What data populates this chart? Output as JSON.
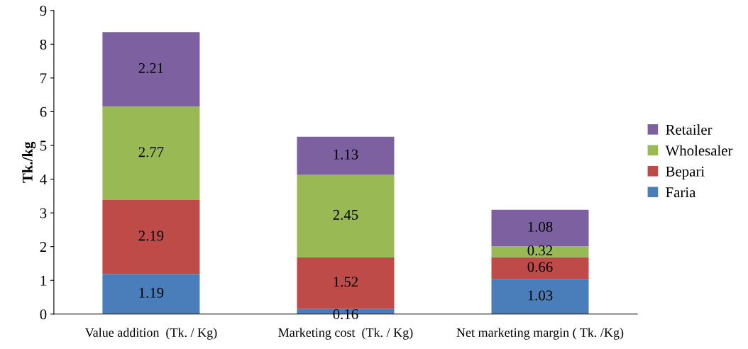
{
  "chart_data": {
    "type": "bar",
    "stacked": true,
    "ylabel": "Tk./kg",
    "categories": [
      "Value addition  (Tk. / Kg)",
      "Marketing cost  (Tk. / Kg)",
      "Net marketing margin ( Tk. /Kg)"
    ],
    "series": [
      {
        "name": "Faria",
        "color": "#4a7ebb",
        "values": [
          1.19,
          0.16,
          1.03
        ]
      },
      {
        "name": "Bepari",
        "color": "#be4b48",
        "values": [
          2.19,
          1.52,
          0.66
        ]
      },
      {
        "name": "Wholesaler",
        "color": "#98b954",
        "values": [
          2.77,
          2.45,
          0.32
        ]
      },
      {
        "name": "Retailer",
        "color": "#7d60a0",
        "values": [
          2.21,
          1.13,
          1.08
        ]
      }
    ],
    "ylim": [
      0,
      9
    ],
    "yticks": [
      0,
      1,
      2,
      3,
      4,
      5,
      6,
      7,
      8,
      9
    ],
    "data_labels": true,
    "legend": "right",
    "grid": false
  }
}
